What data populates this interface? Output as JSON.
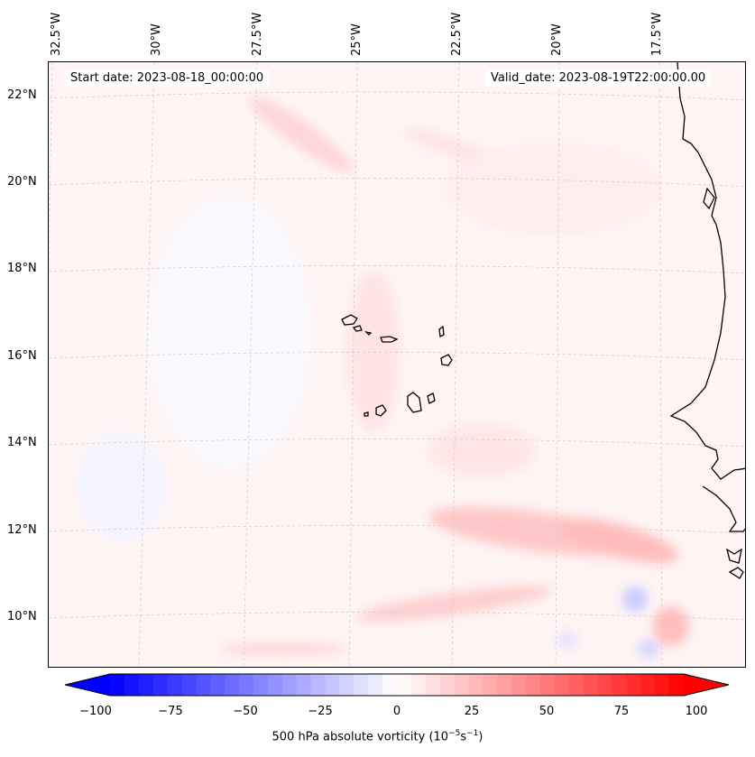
{
  "lon_labels": [
    "32.5°W",
    "30°W",
    "27.5°W",
    "25°W",
    "22.5°W",
    "20°W",
    "17.5°W"
  ],
  "lat_labels": [
    "22°N",
    "20°N",
    "18°N",
    "16°N",
    "14°N",
    "12°N",
    "10°N"
  ],
  "start_date": "Start date: 2023-08-18_00:00:00",
  "valid_date": "Valid_date: 2023-08-19T22:00:00.00",
  "colorbar": {
    "min": -100,
    "max": 100,
    "ticks": [
      "−100",
      "−75",
      "−50",
      "−25",
      "0",
      "25",
      "50",
      "75",
      "100"
    ],
    "label": "500 hPa absolute vorticity (10",
    "label_exp1": "−5",
    "label_mid": "s",
    "label_exp2": "−1",
    "label_end": ")",
    "colors": {
      "low": "#0000ff",
      "mid": "#ffffff",
      "high": "#ff0000"
    }
  },
  "map_extent": {
    "lon_range": [
      -33.0,
      -15.0
    ],
    "lat_range": [
      8.8,
      22.8
    ]
  },
  "field_features": [
    {
      "lon": -32.3,
      "lat": 21.4,
      "value": 22
    },
    {
      "lon": -31.8,
      "lat": 20.0,
      "value": 15
    },
    {
      "lon": -27.2,
      "lat": 21.5,
      "value": 28
    },
    {
      "lon": -26.5,
      "lat": 20.8,
      "value": 24
    },
    {
      "lon": -22.5,
      "lat": 20.2,
      "value": 10
    },
    {
      "lon": -22.5,
      "lat": 15.2,
      "value": 10
    },
    {
      "lon": -20.8,
      "lat": 11.9,
      "value": 30
    },
    {
      "lon": -19.0,
      "lat": 11.8,
      "value": 28
    },
    {
      "lon": -17.0,
      "lat": 11.3,
      "value": 35
    },
    {
      "lon": -22.5,
      "lat": 10.3,
      "value": 28
    },
    {
      "lon": -16.5,
      "lat": 9.8,
      "value": 30
    },
    {
      "lon": -18.2,
      "lat": 10.5,
      "value": -25
    },
    {
      "lon": -17.5,
      "lat": 9.5,
      "value": -20
    },
    {
      "lon": -27.5,
      "lat": 9.4,
      "value": 22
    },
    {
      "lon": -25.0,
      "lat": 17.5,
      "value": 10
    }
  ]
}
